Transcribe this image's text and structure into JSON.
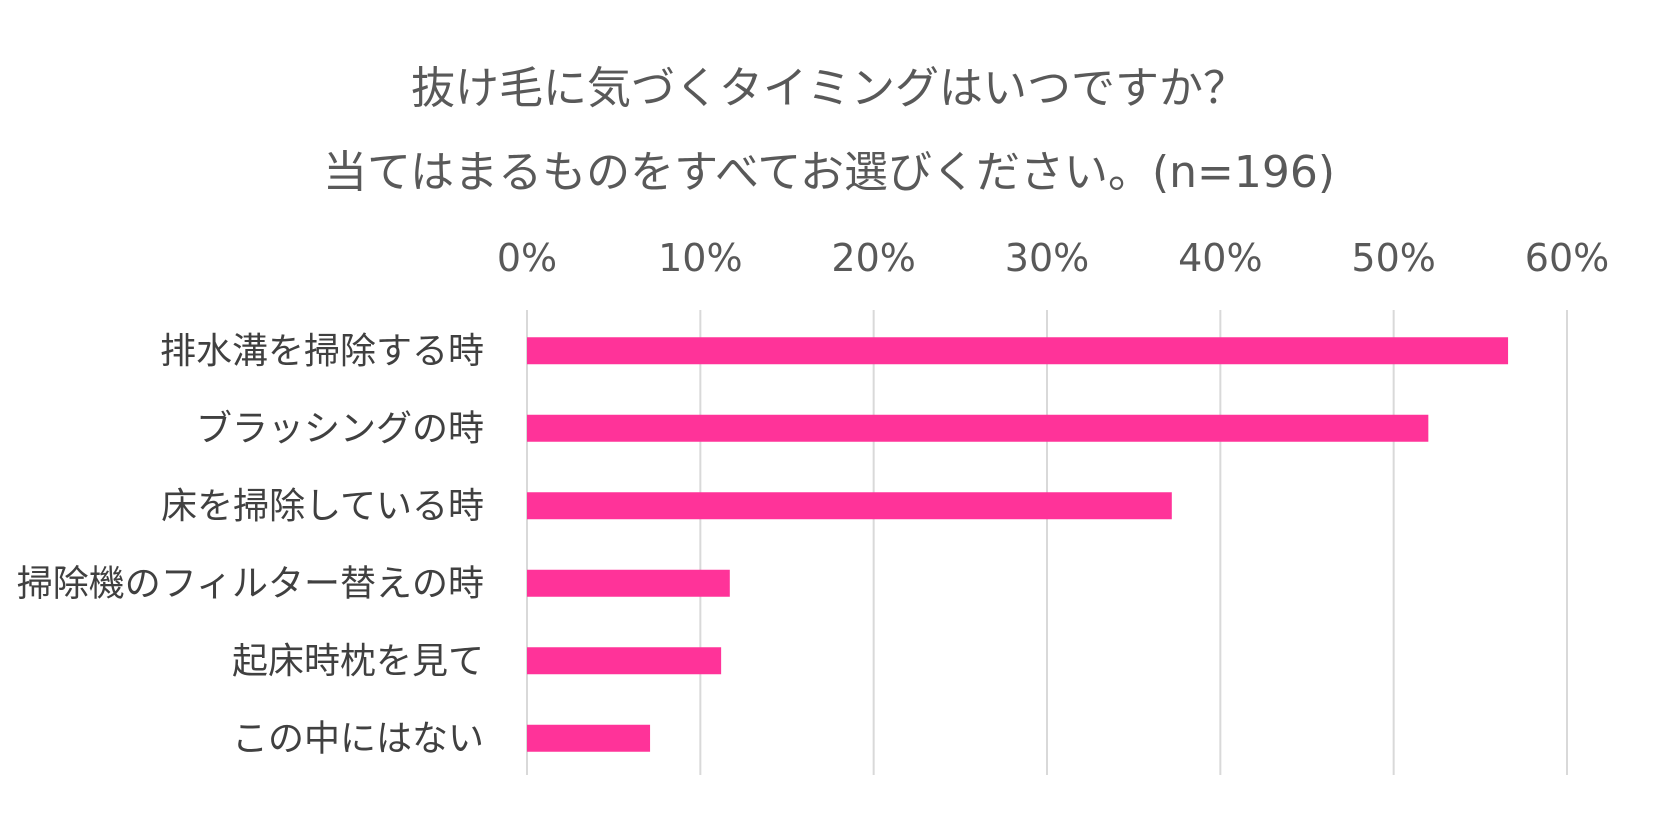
{
  "chart_data": {
    "type": "bar",
    "orientation": "horizontal",
    "title": "抜け毛に気づくタイミングはいつですか？",
    "subtitle": "当てはまるものをすべてお選びください。(n=196)",
    "categories": [
      "排水溝を掃除する時",
      "ブラッシングの時",
      "床を掃除している時",
      "掃除機のフィルター替えの時",
      "起床時枕を見て",
      "この中にはない"
    ],
    "values": [
      56.6,
      52.0,
      37.2,
      11.7,
      11.2,
      7.1
    ],
    "unit": "%",
    "xlim": [
      0,
      60
    ],
    "xticks": [
      0,
      10,
      20,
      30,
      40,
      50,
      60
    ],
    "xtick_labels": [
      "0%",
      "10%",
      "20%",
      "30%",
      "40%",
      "50%",
      "60%"
    ],
    "axis_position": "top",
    "grid": true,
    "legend": "none",
    "colors": {
      "bar": "#FF3399",
      "grid": "#D9D9D9",
      "text": "#595959"
    }
  }
}
